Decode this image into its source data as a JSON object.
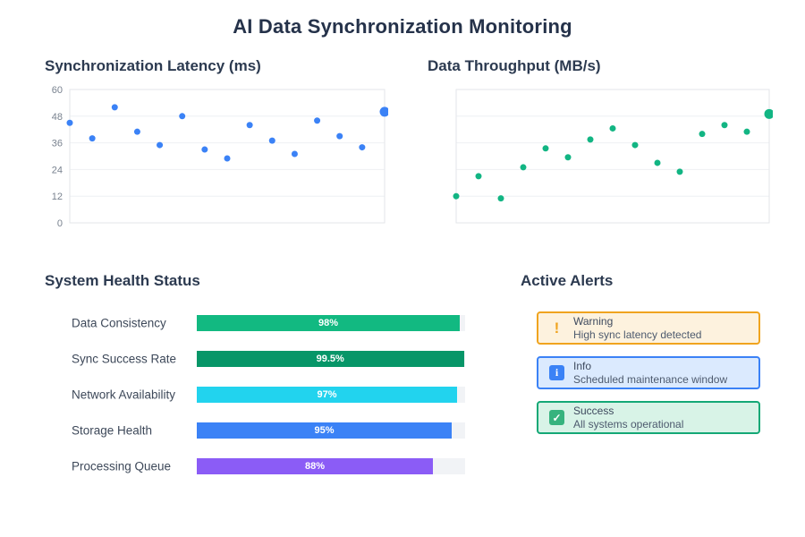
{
  "title": "AI Data Synchronization Monitoring",
  "chart_data": [
    {
      "type": "scatter",
      "title": "Synchronization Latency (ms)",
      "x": [
        1,
        2,
        3,
        4,
        5,
        6,
        7,
        8,
        9,
        10,
        11,
        12,
        13,
        14,
        15
      ],
      "values": [
        45,
        38,
        52,
        41,
        35,
        48,
        33,
        29,
        44,
        37,
        31,
        46,
        39,
        34,
        50
      ],
      "ylim": [
        0,
        60
      ],
      "yticks": [
        0,
        12,
        24,
        36,
        48,
        60
      ],
      "show_y_labels": true,
      "grid": true,
      "legend": "none",
      "point_color": "#3b82f6",
      "highlight_last": true
    },
    {
      "type": "scatter",
      "title": "Data Throughput (MB/s)",
      "x": [
        1,
        2,
        3,
        4,
        5,
        6,
        7,
        8,
        9,
        10,
        11,
        12,
        13,
        14,
        15
      ],
      "values": [
        12,
        21,
        11,
        25,
        33.5,
        29.5,
        37.5,
        42.5,
        35,
        27,
        23,
        40,
        44,
        41,
        49
      ],
      "ylim": [
        0,
        60
      ],
      "yticks": [
        0,
        12,
        24,
        36,
        48,
        60
      ],
      "show_y_labels": false,
      "grid": true,
      "legend": "none",
      "point_color": "#12b583",
      "highlight_last": true
    }
  ],
  "health": {
    "title": "System Health Status",
    "items": [
      {
        "label": "Data Consistency",
        "value": "98%",
        "pct": 98,
        "color": "#12b981"
      },
      {
        "label": "Sync Success Rate",
        "value": "99.5%",
        "pct": 99.5,
        "color": "#079668"
      },
      {
        "label": "Network Availability",
        "value": "97%",
        "pct": 97,
        "color": "#22d3ee"
      },
      {
        "label": "Storage Health",
        "value": "95%",
        "pct": 95,
        "color": "#3b82f6"
      },
      {
        "label": "Processing Queue",
        "value": "88%",
        "pct": 88,
        "color": "#8b5cf6"
      }
    ]
  },
  "alerts": {
    "title": "Active Alerts",
    "items": [
      {
        "level": "Warning",
        "message": "High sync latency detected",
        "icon": "warning-icon",
        "icon_glyph": "!",
        "icon_style": "bare",
        "border": "#f0a41f",
        "bg": "#fdf2de",
        "icon_color": "#f0a41f"
      },
      {
        "level": "Info",
        "message": "Scheduled maintenance window",
        "icon": "info-icon",
        "icon_glyph": "i",
        "icon_style": "boxed",
        "border": "#3b82f6",
        "bg": "#dbeafe",
        "icon_color": "#3b82f6"
      },
      {
        "level": "Success",
        "message": "All systems operational",
        "icon": "success-icon",
        "icon_glyph": "✓",
        "icon_style": "boxed",
        "border": "#14a876",
        "bg": "#d8f3e7",
        "icon_color": "#36b37e"
      }
    ]
  },
  "colors": {
    "grid_line": "#eef0f3",
    "plot_border": "#e3e6ea",
    "tick_label": "#79828f",
    "bar_track": "#f1f3f6",
    "heading": "#2c3a50"
  }
}
